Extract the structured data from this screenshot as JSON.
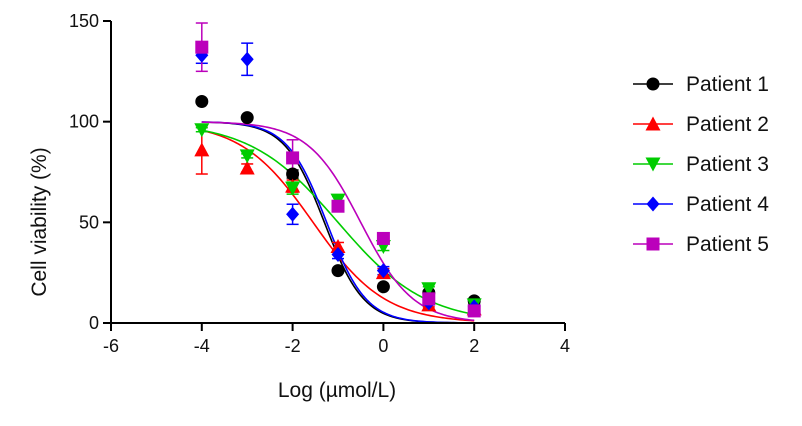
{
  "chart_data": {
    "type": "scatter",
    "title": "",
    "xlabel": "Log (µmol/L)",
    "ylabel": "Cell viability (%)",
    "xlim": [
      -6,
      4
    ],
    "ylim": [
      0,
      150
    ],
    "xticks": [
      "-6",
      "-4",
      "-2",
      "0",
      "2",
      "4"
    ],
    "yticks": [
      "0",
      "50",
      "100",
      "150"
    ],
    "grid": false,
    "legend_position": "right",
    "series": [
      {
        "name": "Patient 1",
        "color": "#000000",
        "marker": "circle",
        "x": [
          -4,
          -3,
          -2,
          -1,
          0,
          1,
          2
        ],
        "y": [
          110,
          102,
          74,
          26,
          18,
          15,
          11
        ],
        "err": [
          0,
          0,
          2,
          0,
          0,
          1,
          1
        ],
        "fit": {
          "top": 100,
          "bottom": 0,
          "logIC50": -1.3,
          "hill": 1.0
        }
      },
      {
        "name": "Patient 2",
        "color": "#ff0000",
        "marker": "triangle-up",
        "x": [
          -4,
          -3,
          -2,
          -1,
          0,
          1,
          2
        ],
        "y": [
          86,
          77,
          68,
          38,
          25,
          9,
          7
        ],
        "err": [
          12,
          2,
          3,
          2,
          2,
          1,
          1
        ],
        "fit": {
          "top": 100,
          "bottom": 0,
          "logIC50": -1.55,
          "hill": 0.55
        }
      },
      {
        "name": "Patient 3",
        "color": "#00cc00",
        "marker": "triangle-down",
        "x": [
          -4,
          -3,
          -2,
          -1,
          0,
          1,
          2
        ],
        "y": [
          96,
          83,
          67,
          61,
          38,
          17,
          9
        ],
        "err": [
          1,
          1,
          3,
          2,
          2,
          1,
          1
        ],
        "fit": {
          "top": 100,
          "bottom": 0,
          "logIC50": -1.0,
          "hill": 0.45
        }
      },
      {
        "name": "Patient 4",
        "color": "#0000ff",
        "marker": "diamond",
        "x": [
          -4,
          -3,
          -2,
          -1,
          0,
          1,
          2
        ],
        "y": [
          133,
          131,
          54,
          34,
          26,
          10,
          8
        ],
        "err": [
          4,
          8,
          5,
          2,
          2,
          1,
          1
        ],
        "fit": {
          "top": 100,
          "bottom": 0,
          "logIC50": -1.25,
          "hill": 1.0
        }
      },
      {
        "name": "Patient 5",
        "color": "#bb00bb",
        "marker": "square",
        "x": [
          -4,
          -2,
          -1,
          0,
          1,
          2
        ],
        "y": [
          137,
          82,
          58,
          42,
          12,
          6
        ],
        "err": [
          12,
          9,
          2,
          2,
          1,
          1
        ],
        "fit": {
          "top": 100,
          "bottom": 0,
          "logIC50": -0.5,
          "hill": 0.75
        }
      }
    ]
  }
}
